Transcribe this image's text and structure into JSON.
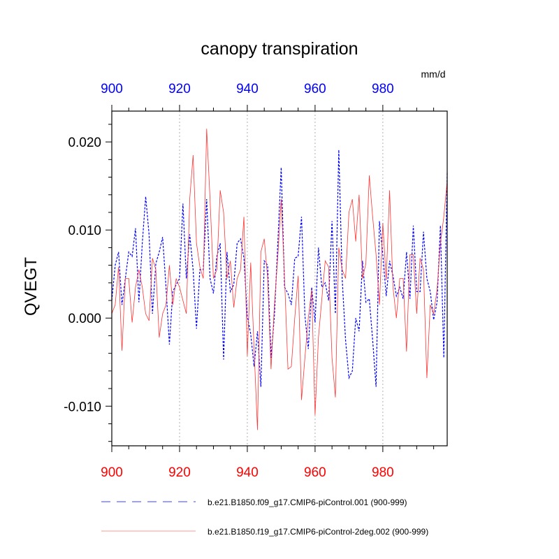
{
  "chart_data": {
    "type": "line",
    "title": "canopy transpiration",
    "ylabel": "QVEGT",
    "units": "mm/d",
    "xlim": [
      900,
      999
    ],
    "ylim": [
      -0.0145,
      0.0235
    ],
    "x_ticks": [
      900,
      920,
      940,
      960,
      980
    ],
    "x_tick_labels": [
      "900",
      "920",
      "940",
      "960",
      "980"
    ],
    "y_ticks": [
      -0.01,
      0.0,
      0.01,
      0.02
    ],
    "y_tick_labels": [
      "-0.010",
      "0.000",
      "0.010",
      "0.020"
    ],
    "grid": "vertical dotted at major x ticks",
    "top_axis_color": "#0000ff",
    "bottom_axis_color": "#ff0000",
    "legend_position": "bottom",
    "x_start": 900,
    "series": [
      {
        "name": "b.e21.B1850.f09_g17.CMIP6-piControl.001 (900-999)",
        "color": "#0000ff",
        "style": "dashed",
        "values": [
          0.002,
          0.006,
          0.0075,
          0.0015,
          0.0045,
          0.0075,
          0.007,
          0.0102,
          0.0018,
          0.0085,
          0.0138,
          0.0095,
          0.0005,
          0.0062,
          0.0075,
          0.0092,
          0.0035,
          -0.003,
          0.003,
          0.0038,
          0.0045,
          0.013,
          0.0045,
          0.0095,
          0.0055,
          -0.0012,
          0.0055,
          0.0055,
          0.0135,
          0.0045,
          0.0028,
          0.007,
          0.0085,
          -0.0047,
          0.0075,
          0.003,
          0.0038,
          0.0085,
          0.009,
          0.0068,
          0.0002,
          -0.0018,
          -0.0055,
          -0.0015,
          -0.0078,
          0.0065,
          0.006,
          -0.0045,
          0.0003,
          0.0085,
          0.0171,
          0.0035,
          0.0028,
          0.0015,
          0.0068,
          0.007,
          0.0115,
          0.0003,
          -0.0035,
          0.0035,
          -0.0005,
          0.008,
          0.0035,
          0.004,
          0.002,
          0.011,
          0.0005,
          0.0191,
          0.0045,
          -0.0025,
          -0.0068,
          -0.006,
          0.0,
          -0.0015,
          0.0065,
          0.0018,
          0.0022,
          -0.0025,
          -0.0078,
          0.011,
          0.0072,
          0.0025,
          0.0065,
          0.0048,
          0.0025,
          0.0035,
          0.0022,
          0.0075,
          0.0022,
          0.0105,
          0.003,
          0.003,
          0.0098,
          0.0045,
          0.003,
          -0.0002,
          0.0018,
          0.0105,
          -0.0045,
          0.0165
        ]
      },
      {
        "name": "b.e21.B1850.f19_g17.CMIP6-piControl-2deg.002 (900-999)",
        "color": "#ff3333",
        "style": "solid",
        "values": [
          0.0005,
          0.0015,
          0.0058,
          -0.0037,
          0.0045,
          0.0045,
          -0.0005,
          0.0035,
          0.0055,
          0.0035,
          0.0005,
          -0.0003,
          0.0068,
          0.0055,
          -0.0022,
          0.0005,
          0.0015,
          0.006,
          0.0015,
          0.0045,
          0.0035,
          0.002,
          0.0005,
          0.0135,
          0.0185,
          0.0085,
          0.0058,
          0.0045,
          0.0215,
          0.0135,
          0.0045,
          0.0055,
          0.0145,
          0.012,
          0.0045,
          0.0065,
          0.0012,
          0.0045,
          0.0055,
          0.0115,
          -0.0043,
          0.0063,
          -0.0035,
          -0.0127,
          0.0075,
          0.009,
          0.0045,
          -0.0058,
          0.0015,
          0.007,
          0.0135,
          0.0045,
          -0.0058,
          -0.0055,
          0.0,
          0.0048,
          -0.0093,
          -0.0045,
          0.0,
          0.0032,
          -0.011,
          -0.0022,
          0.0022,
          0.0065,
          0.0058,
          -0.0045,
          -0.009,
          0.008,
          0.0055,
          0.0045,
          0.012,
          0.0135,
          0.0087,
          0.014,
          0.0045,
          0.0062,
          0.0162,
          0.0115,
          0.0072,
          0.0015,
          0.0108,
          0.0043,
          0.0145,
          0.0035,
          0.0,
          0.0045,
          0.0045,
          -0.0038,
          0.0072,
          0.0072,
          0.0005,
          0.0068,
          0.0055,
          -0.0068,
          0.0015,
          0.0005,
          0.0032,
          0.0085,
          0.0115,
          0.0156
        ]
      }
    ]
  }
}
